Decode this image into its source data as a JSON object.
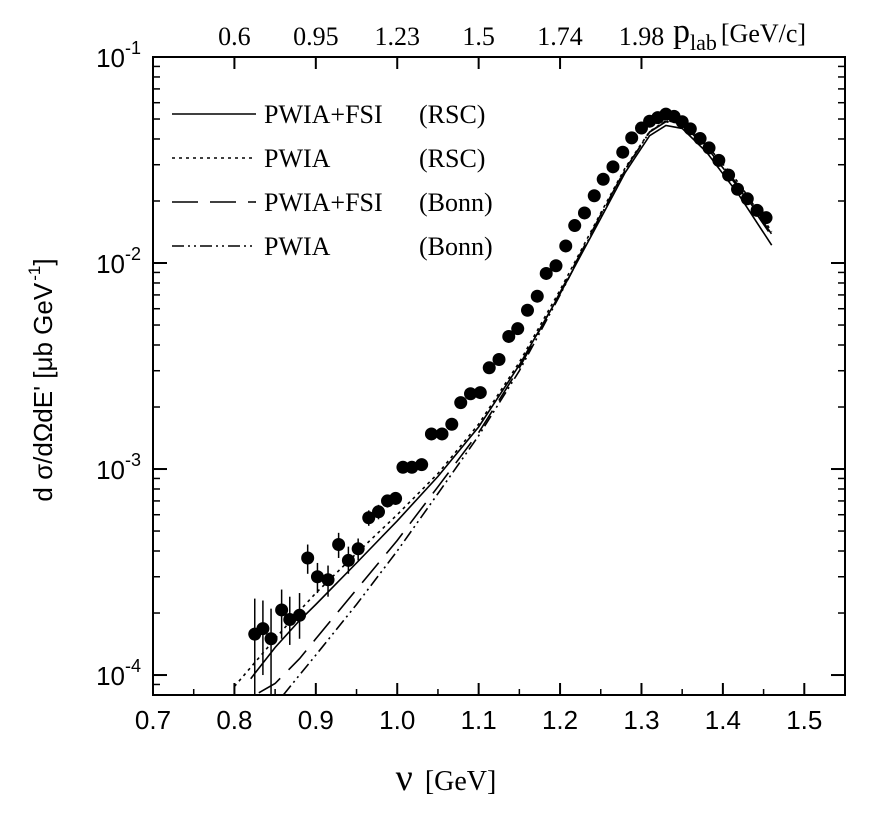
{
  "chart_data": {
    "type": "scatter",
    "title": "",
    "xlabel": "ν [GeV]",
    "xlabel_symbol": "ν",
    "xlabel_unit": "[GeV]",
    "ylabel": "d σ/dΩdE' [μb GeV ⁻¹]",
    "ylabel_main": "d σ/dΩdE' [μb GeV",
    "ylabel_exp": "-1",
    "ylabel_close": "]",
    "xlim": [
      0.7,
      1.55
    ],
    "ylim": [
      8e-05,
      0.1
    ],
    "yscale": "log",
    "x_ticks": [
      "0.7",
      "0.8",
      "0.9",
      "1.0",
      "1.1",
      "1.2",
      "1.3",
      "1.4",
      "1.5"
    ],
    "y_ticks": [
      {
        "value": 0.1,
        "base": "10",
        "exp": "-1"
      },
      {
        "value": 0.01,
        "base": "10",
        "exp": "-2"
      },
      {
        "value": 0.001,
        "base": "10",
        "exp": "-3"
      },
      {
        "value": 0.0001,
        "base": "10",
        "exp": "-4"
      }
    ],
    "top_axis": {
      "label_main": "p",
      "label_sub": "lab",
      "label_unit": "[GeV/c]",
      "ticks": [
        {
          "nu": 0.8,
          "label": "0.6"
        },
        {
          "nu": 0.9,
          "label": "0.95"
        },
        {
          "nu": 1.0,
          "label": "1.23"
        },
        {
          "nu": 1.1,
          "label": "1.5"
        },
        {
          "nu": 1.2,
          "label": "1.74"
        },
        {
          "nu": 1.3,
          "label": "1.98"
        }
      ]
    },
    "grid": false,
    "legend_position": "top-left",
    "series": [
      {
        "name": "PWIA+FSI",
        "model": "(RSC)",
        "style": "solid",
        "x": [
          0.82,
          0.85,
          0.88,
          0.9,
          0.95,
          1.0,
          1.05,
          1.1,
          1.15,
          1.2,
          1.25,
          1.28,
          1.31,
          1.33,
          1.35,
          1.38,
          1.42,
          1.46
        ],
        "y": [
          9.6e-05,
          0.000136,
          0.000184,
          0.00022,
          0.00035,
          0.00056,
          0.00092,
          0.0016,
          0.0032,
          0.0071,
          0.0165,
          0.0275,
          0.0415,
          0.0465,
          0.045,
          0.0345,
          0.0213,
          0.0122
        ]
      },
      {
        "name": "PWIA",
        "model": "(RSC)",
        "style": "dotted",
        "x": [
          0.8,
          0.85,
          0.88,
          0.9,
          0.95,
          1.0,
          1.05,
          1.1,
          1.15,
          1.2,
          1.25,
          1.28,
          1.31,
          1.33,
          1.35,
          1.38,
          1.42,
          1.46
        ],
        "y": [
          8.8e-05,
          0.00015,
          0.000205,
          0.00025,
          0.00039,
          0.0006,
          0.00095,
          0.00165,
          0.0033,
          0.0074,
          0.0175,
          0.029,
          0.0435,
          0.049,
          0.048,
          0.0375,
          0.0243,
          0.0142
        ]
      },
      {
        "name": "PWIA+FSI",
        "model": "(Bonn)",
        "style": "dashed",
        "x": [
          0.83,
          0.85,
          0.88,
          0.9,
          0.95,
          1.0,
          1.05,
          1.1,
          1.15,
          1.2,
          1.25,
          1.28,
          1.31,
          1.33,
          1.35,
          1.38,
          1.42,
          1.46
        ],
        "y": [
          8.2e-05,
          9.1e-05,
          0.00012,
          0.00015,
          0.00026,
          0.00045,
          0.00082,
          0.0015,
          0.0031,
          0.0072,
          0.0172,
          0.0285,
          0.0432,
          0.0485,
          0.047,
          0.0365,
          0.023,
          0.0135
        ]
      },
      {
        "name": "PWIA",
        "model": "(Bonn)",
        "style": "dashdot",
        "x": [
          0.86,
          0.88,
          0.9,
          0.95,
          1.0,
          1.05,
          1.1,
          1.15,
          1.2,
          1.25,
          1.28,
          1.31,
          1.33,
          1.35,
          1.38,
          1.42,
          1.46
        ],
        "y": [
          8e-05,
          0.0001,
          0.000125,
          0.00022,
          0.0004,
          0.00076,
          0.00145,
          0.003,
          0.007,
          0.017,
          0.0283,
          0.0433,
          0.0488,
          0.0475,
          0.037,
          0.0235,
          0.0138
        ]
      },
      {
        "name": "data",
        "style": "points",
        "points": [
          {
            "x": 0.825,
            "y": 0.000158,
            "lo": 8e-05,
            "hi": 0.000235
          },
          {
            "x": 0.835,
            "y": 0.000168,
            "lo": 0.0001,
            "hi": 0.00023
          },
          {
            "x": 0.845,
            "y": 0.00015,
            "lo": 8e-05,
            "hi": 0.00021
          },
          {
            "x": 0.858,
            "y": 0.000207,
            "lo": 0.00015,
            "hi": 0.00026
          },
          {
            "x": 0.868,
            "y": 0.000186,
            "lo": 0.00014,
            "hi": 0.00024
          },
          {
            "x": 0.88,
            "y": 0.000195,
            "lo": 0.00015,
            "hi": 0.00025
          },
          {
            "x": 0.89,
            "y": 0.00037,
            "lo": 0.00031,
            "hi": 0.00043
          },
          {
            "x": 0.902,
            "y": 0.0003,
            "lo": 0.00025,
            "hi": 0.00035
          },
          {
            "x": 0.915,
            "y": 0.00029,
            "lo": 0.00024,
            "hi": 0.00034
          },
          {
            "x": 0.928,
            "y": 0.00043,
            "lo": 0.00037,
            "hi": 0.00049
          },
          {
            "x": 0.94,
            "y": 0.00036,
            "lo": 0.00031,
            "hi": 0.00042
          },
          {
            "x": 0.952,
            "y": 0.00041,
            "lo": 0.00036,
            "hi": 0.00046
          },
          {
            "x": 0.965,
            "y": 0.00058,
            "lo": 0.00053,
            "hi": 0.00063
          },
          {
            "x": 0.977,
            "y": 0.00062,
            "lo": 0.00057,
            "hi": 0.00067
          },
          {
            "x": 0.988,
            "y": 0.0007,
            "lo": 0.00065,
            "hi": 0.00075
          },
          {
            "x": 0.998,
            "y": 0.00072,
            "lo": 0.00067,
            "hi": 0.00077
          },
          {
            "x": 1.007,
            "y": 0.00102
          },
          {
            "x": 1.018,
            "y": 0.00102
          },
          {
            "x": 1.03,
            "y": 0.00105
          },
          {
            "x": 1.042,
            "y": 0.00148
          },
          {
            "x": 1.055,
            "y": 0.00148
          },
          {
            "x": 1.067,
            "y": 0.00165
          },
          {
            "x": 1.078,
            "y": 0.0021
          },
          {
            "x": 1.09,
            "y": 0.00232
          },
          {
            "x": 1.102,
            "y": 0.00235
          },
          {
            "x": 1.113,
            "y": 0.0031
          },
          {
            "x": 1.125,
            "y": 0.0034
          },
          {
            "x": 1.137,
            "y": 0.0044
          },
          {
            "x": 1.148,
            "y": 0.0048
          },
          {
            "x": 1.16,
            "y": 0.0059
          },
          {
            "x": 1.172,
            "y": 0.0069
          },
          {
            "x": 1.183,
            "y": 0.0089
          },
          {
            "x": 1.195,
            "y": 0.0097
          },
          {
            "x": 1.207,
            "y": 0.0121
          },
          {
            "x": 1.218,
            "y": 0.0152
          },
          {
            "x": 1.23,
            "y": 0.0175
          },
          {
            "x": 1.242,
            "y": 0.0212
          },
          {
            "x": 1.253,
            "y": 0.0255
          },
          {
            "x": 1.265,
            "y": 0.0293
          },
          {
            "x": 1.277,
            "y": 0.0345
          },
          {
            "x": 1.288,
            "y": 0.0405
          },
          {
            "x": 1.3,
            "y": 0.0452
          },
          {
            "x": 1.31,
            "y": 0.0488
          },
          {
            "x": 1.32,
            "y": 0.0508
          },
          {
            "x": 1.33,
            "y": 0.0528
          },
          {
            "x": 1.34,
            "y": 0.0515
          },
          {
            "x": 1.35,
            "y": 0.0485
          },
          {
            "x": 1.36,
            "y": 0.0448
          },
          {
            "x": 1.372,
            "y": 0.0402
          },
          {
            "x": 1.383,
            "y": 0.0362
          },
          {
            "x": 1.395,
            "y": 0.0315
          },
          {
            "x": 1.407,
            "y": 0.0267
          },
          {
            "x": 1.418,
            "y": 0.0228
          },
          {
            "x": 1.43,
            "y": 0.0205
          },
          {
            "x": 1.442,
            "y": 0.018
          },
          {
            "x": 1.453,
            "y": 0.0166
          }
        ]
      }
    ]
  }
}
